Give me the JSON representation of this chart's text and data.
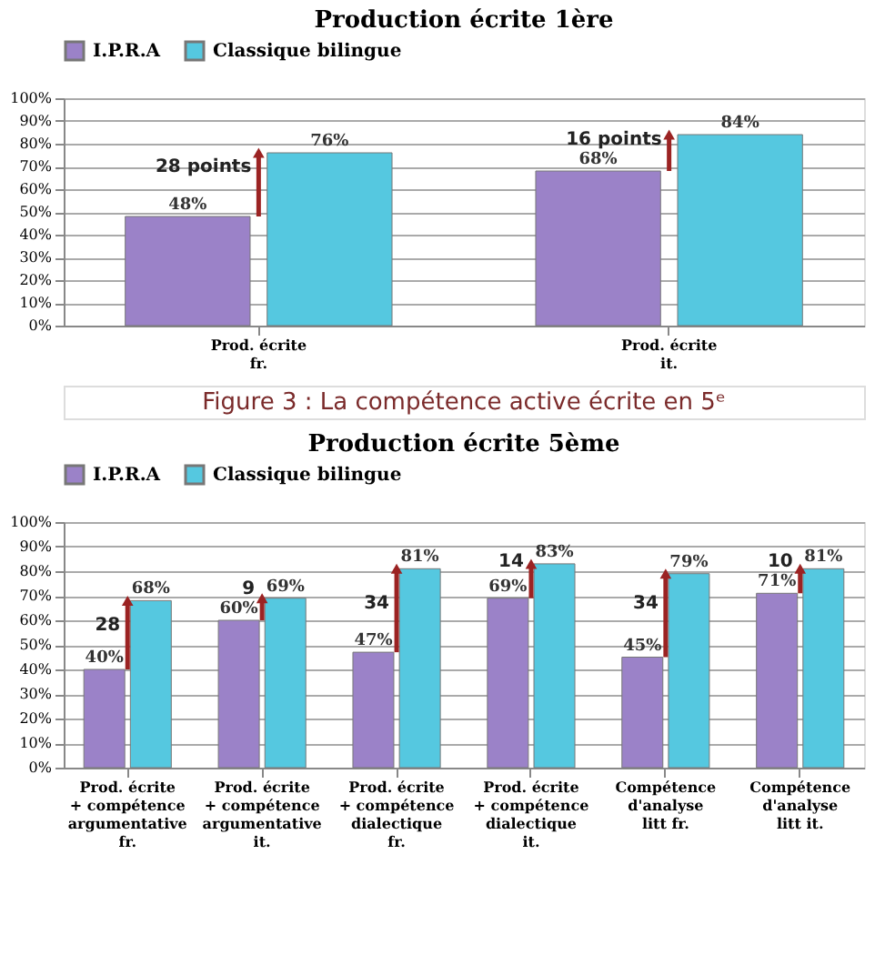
{
  "chart_data": [
    {
      "type": "bar",
      "title": "Production écrite 1ère",
      "categories": [
        "Prod. écrite fr.",
        "Prod. écrite it."
      ],
      "series": [
        {
          "name": "I.P.R.A",
          "color": "#9b82c8",
          "values": [
            48,
            68
          ],
          "value_labels": [
            "48%",
            "68%"
          ]
        },
        {
          "name": "Classique bilingue",
          "color": "#55c8e0",
          "values": [
            76,
            84
          ],
          "value_labels": [
            "76%",
            "84%"
          ]
        }
      ],
      "ylim": [
        0,
        100
      ],
      "yticks": [
        {
          "value": 0,
          "label": "0%"
        },
        {
          "value": 10,
          "label": "10%"
        },
        {
          "value": 20,
          "label": "20%"
        },
        {
          "value": 30,
          "label": "30%"
        },
        {
          "value": 40,
          "label": "40%"
        },
        {
          "value": 50,
          "label": "50%"
        },
        {
          "value": 60,
          "label": "60%"
        },
        {
          "value": 70,
          "label": "70%"
        },
        {
          "value": 80,
          "label": "80%"
        },
        {
          "value": 90,
          "label": "90%"
        },
        {
          "value": 100,
          "label": "100%"
        }
      ],
      "grid": "y",
      "legend": "top",
      "annotations": [
        {
          "text": "28 points",
          "x": "Prod. écrite fr.",
          "y": 70
        },
        {
          "text": "16 points",
          "x": "Prod. écrite it.",
          "y": 82
        }
      ]
    },
    {
      "type": "bar",
      "title": "Production écrite 5ème",
      "categories": [
        "Prod. écrite + compétence argumentative fr.",
        "Prod. écrite + compétence argumentative it.",
        "Prod. écrite + compétence dialectique fr.",
        "Prod. écrite + compétence dialectique it.",
        "Compétence d'analyse litt fr.",
        "Compétence d'analyse litt it."
      ],
      "series": [
        {
          "name": "I.P.R.A",
          "color": "#9b82c8",
          "values": [
            40,
            60,
            47,
            69,
            45,
            71
          ],
          "value_labels": [
            "40%",
            "60%",
            "47%",
            "69%",
            "45%",
            "71%"
          ]
        },
        {
          "name": "Classique bilingue",
          "color": "#55c8e0",
          "values": [
            68,
            69,
            81,
            83,
            79,
            81
          ],
          "value_labels": [
            "68%",
            "69%",
            "81%",
            "83%",
            "79%",
            "81%"
          ]
        }
      ],
      "ylim": [
        0,
        100
      ],
      "yticks": [
        {
          "value": 0,
          "label": "0%"
        },
        {
          "value": 10,
          "label": "10%"
        },
        {
          "value": 20,
          "label": "20%"
        },
        {
          "value": 30,
          "label": "30%"
        },
        {
          "value": 40,
          "label": "40%"
        },
        {
          "value": 50,
          "label": "50%"
        },
        {
          "value": 60,
          "label": "60%"
        },
        {
          "value": 70,
          "label": "70%"
        },
        {
          "value": 80,
          "label": "80%"
        },
        {
          "value": 90,
          "label": "90%"
        },
        {
          "value": 100,
          "label": "100%"
        }
      ],
      "grid": "y",
      "legend": "top",
      "annotations": [
        "Figure 3 : La compétence active écrite en 5ᵉ",
        {
          "text": "28",
          "x": "Prod. écrite + compétence argumentative fr.",
          "y": 58
        },
        {
          "text": "9",
          "x": "Prod. écrite + compétence argumentative it.",
          "y": 73
        },
        {
          "text": "34",
          "x": "Prod. écrite + compétence dialectique fr.",
          "y": 67
        },
        {
          "text": "14",
          "x": "Prod. écrite + compétence dialectique it.",
          "y": 84
        },
        {
          "text": "34",
          "x": "Compétence d'analyse litt fr.",
          "y": 67
        },
        {
          "text": "10",
          "x": "Compétence d'analyse litt it.",
          "y": 84
        }
      ]
    }
  ]
}
